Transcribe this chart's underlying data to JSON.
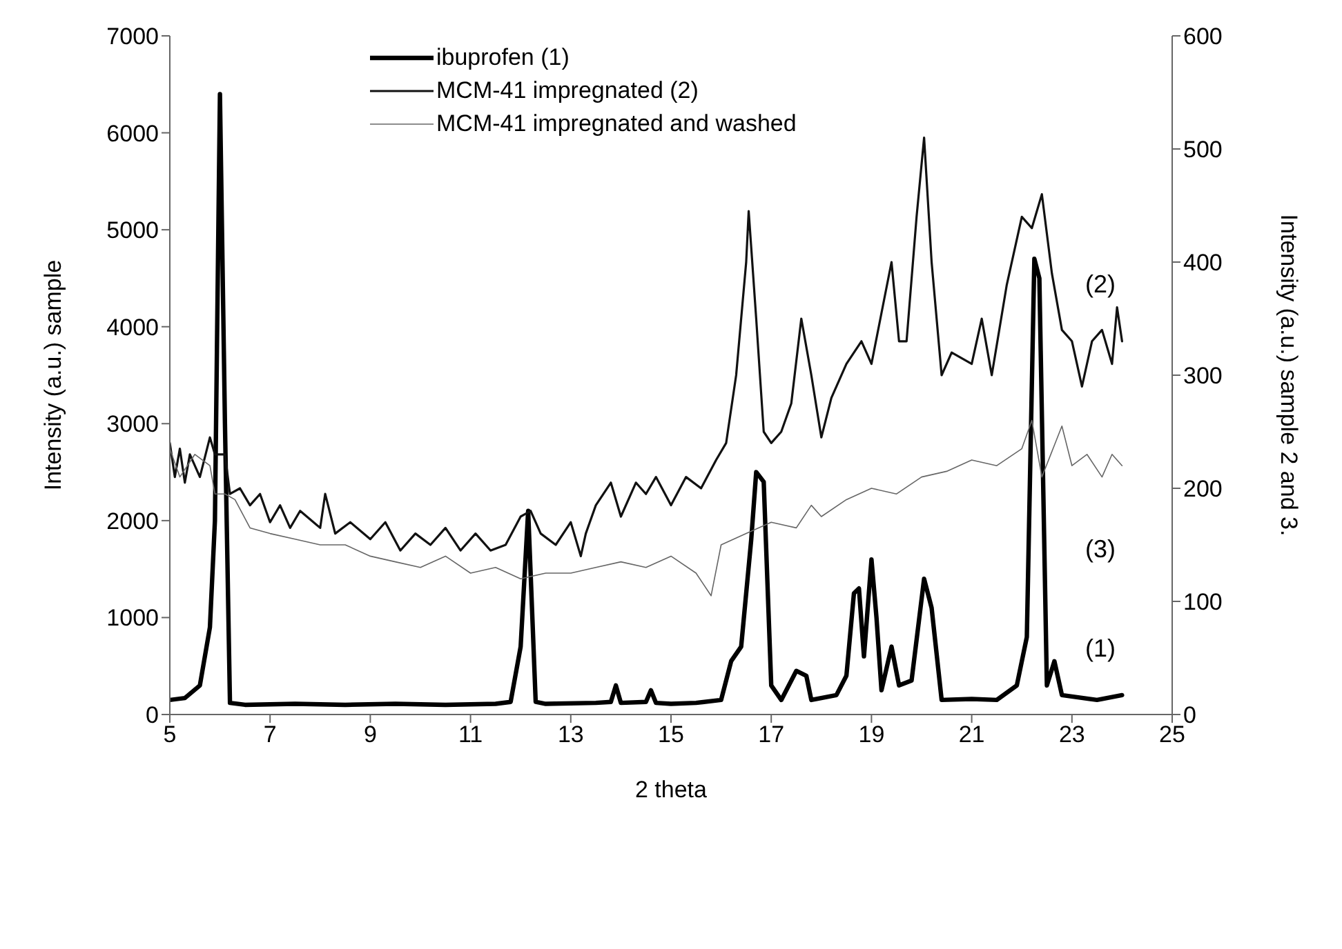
{
  "chart_data": {
    "type": "line",
    "xlabel": "2 theta",
    "ylabel": "Intensity (a.u.) sample",
    "y2label": "Intensity (a.u.) sample 2 and 3.",
    "xlim": [
      5,
      25
    ],
    "xticks": [
      5,
      7,
      9,
      11,
      13,
      15,
      17,
      19,
      21,
      23,
      25
    ],
    "ylim": [
      0,
      7000
    ],
    "yticks": [
      0,
      1000,
      2000,
      3000,
      4000,
      5000,
      6000,
      7000
    ],
    "y2lim": [
      0,
      600
    ],
    "y2ticks": [
      0,
      100,
      200,
      300,
      400,
      500,
      600
    ],
    "legend": "top left",
    "marker": "none",
    "line_style": "solid",
    "series": [
      {
        "name": "ibuprofen (1)",
        "color": "#000000",
        "x": [
          5.0,
          5.3,
          5.6,
          5.8,
          5.9,
          6.0,
          6.1,
          6.2,
          6.5,
          7.5,
          8.5,
          9.5,
          10.5,
          11.5,
          11.8,
          12.0,
          12.15,
          12.3,
          12.5,
          13.5,
          13.8,
          13.9,
          14.0,
          14.5,
          14.6,
          14.7,
          15.0,
          15.5,
          16.0,
          16.2,
          16.4,
          16.6,
          16.7,
          16.85,
          17.0,
          17.2,
          17.5,
          17.7,
          17.8,
          18.3,
          18.5,
          18.65,
          18.75,
          18.85,
          19.0,
          19.1,
          19.2,
          19.4,
          19.55,
          19.8,
          20.05,
          20.2,
          20.4,
          21.0,
          21.5,
          21.9,
          22.1,
          22.25,
          22.35,
          22.5,
          22.65,
          22.8,
          23.5,
          24.0
        ],
        "values": [
          150,
          170,
          300,
          900,
          2000,
          6400,
          3000,
          120,
          100,
          110,
          100,
          110,
          100,
          110,
          130,
          700,
          2100,
          130,
          110,
          120,
          130,
          300,
          120,
          130,
          250,
          120,
          110,
          120,
          150,
          550,
          700,
          1800,
          2500,
          2400,
          300,
          150,
          450,
          400,
          150,
          200,
          400,
          1250,
          1300,
          600,
          1600,
          1000,
          250,
          700,
          300,
          350,
          1400,
          1100,
          150,
          160,
          150,
          300,
          800,
          4700,
          4500,
          300,
          550,
          200,
          150,
          200
        ]
      },
      {
        "name": "MCM-41 impregnated (2)",
        "color": "#111111",
        "axis": "y2",
        "x": [
          5.0,
          5.1,
          5.2,
          5.3,
          5.4,
          5.6,
          5.8,
          5.9,
          6.1,
          6.2,
          6.4,
          6.6,
          6.8,
          7.0,
          7.2,
          7.4,
          7.6,
          8.0,
          8.1,
          8.3,
          8.6,
          9.0,
          9.3,
          9.6,
          9.9,
          10.2,
          10.5,
          10.8,
          11.1,
          11.4,
          11.7,
          12.0,
          12.2,
          12.4,
          12.7,
          13.0,
          13.2,
          13.3,
          13.5,
          13.8,
          14.0,
          14.3,
          14.5,
          14.7,
          15.0,
          15.3,
          15.6,
          15.9,
          16.1,
          16.3,
          16.5,
          16.55,
          16.7,
          16.85,
          17.0,
          17.2,
          17.4,
          17.6,
          17.8,
          18.0,
          18.2,
          18.5,
          18.8,
          19.0,
          19.2,
          19.4,
          19.55,
          19.7,
          19.9,
          20.05,
          20.2,
          20.4,
          20.6,
          21.0,
          21.2,
          21.4,
          21.7,
          22.0,
          22.2,
          22.4,
          22.6,
          22.8,
          23.0,
          23.2,
          23.4,
          23.6,
          23.8,
          23.9,
          24.0
        ],
        "values": [
          240,
          210,
          235,
          205,
          230,
          210,
          245,
          230,
          230,
          195,
          200,
          185,
          195,
          170,
          185,
          165,
          180,
          165,
          195,
          160,
          170,
          155,
          170,
          145,
          160,
          150,
          165,
          145,
          160,
          145,
          150,
          175,
          180,
          160,
          150,
          170,
          140,
          160,
          185,
          205,
          175,
          205,
          195,
          210,
          185,
          210,
          200,
          225,
          240,
          300,
          400,
          445,
          350,
          250,
          240,
          250,
          275,
          350,
          300,
          245,
          280,
          310,
          330,
          310,
          355,
          400,
          330,
          330,
          440,
          510,
          400,
          300,
          320,
          310,
          350,
          300,
          380,
          440,
          430,
          460,
          390,
          340,
          330,
          290,
          330,
          340,
          310,
          360,
          330
        ]
      },
      {
        "name": "MCM-41 impregnated and washed",
        "color": "#666666",
        "axis": "y2",
        "x": [
          5.0,
          5.2,
          5.5,
          5.8,
          5.9,
          6.1,
          6.3,
          6.6,
          7.0,
          7.5,
          8.0,
          8.5,
          9.0,
          9.5,
          10.0,
          10.5,
          11.0,
          11.5,
          12.0,
          12.5,
          13.0,
          13.5,
          14.0,
          14.5,
          15.0,
          15.5,
          15.8,
          16.0,
          16.5,
          17.0,
          17.5,
          17.8,
          18.0,
          18.5,
          19.0,
          19.5,
          20.0,
          20.5,
          21.0,
          21.5,
          22.0,
          22.2,
          22.4,
          22.8,
          23.0,
          23.3,
          23.6,
          23.8,
          24.0
        ],
        "values": [
          235,
          210,
          230,
          220,
          195,
          195,
          190,
          165,
          160,
          155,
          150,
          150,
          140,
          135,
          130,
          140,
          125,
          130,
          120,
          125,
          125,
          130,
          135,
          130,
          140,
          125,
          105,
          150,
          160,
          170,
          165,
          185,
          175,
          190,
          200,
          195,
          210,
          215,
          225,
          220,
          235,
          260,
          210,
          255,
          220,
          230,
          210,
          230,
          220
        ]
      }
    ],
    "annotations": [
      "(2)",
      "(3)",
      "(1)"
    ]
  }
}
